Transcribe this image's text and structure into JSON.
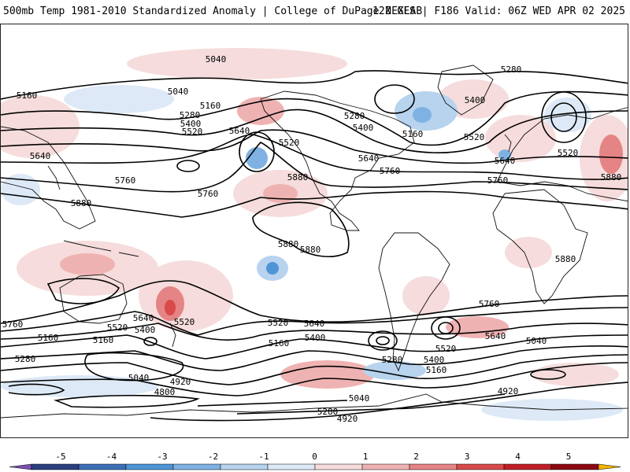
{
  "header": {
    "left_title": "500mb Temp 1981-2010 Standardized Anomaly | College of DuPage NEXLAB",
    "right_title": "12Z GFS | F186 Valid: 06Z WED APR 02 2025"
  },
  "contour_labels": [
    "5040",
    "5040",
    "5160",
    "5160",
    "5280",
    "5400",
    "5520",
    "5640",
    "5520",
    "5640",
    "5760",
    "5880",
    "5760",
    "5880",
    "5880",
    "5880",
    "5280",
    "5160",
    "5400",
    "5280",
    "5520",
    "5640",
    "5760",
    "5160",
    "5520",
    "5400",
    "5640",
    "5520",
    "5880",
    "5880",
    "5760",
    "5640",
    "5520",
    "5400",
    "5160",
    "5280",
    "5040",
    "4920",
    "4800",
    "5760",
    "5520",
    "5640",
    "5160",
    "5400",
    "5280",
    "5040",
    "4920",
    "5280",
    "5400",
    "5520",
    "5640",
    "5760",
    "5160",
    "5040",
    "4920"
  ],
  "colorbar": {
    "ticks": [
      "-5",
      "-4",
      "-3",
      "-2",
      "-1",
      "0",
      "1",
      "2",
      "3",
      "4",
      "5"
    ],
    "colors": [
      "#7b4fb0",
      "#2b3f7d",
      "#3b6fb8",
      "#4f95d6",
      "#7fb2e3",
      "#b7d3ee",
      "#dde9f6",
      "#f6dcdc",
      "#efb2b2",
      "#e58484",
      "#d94a4a",
      "#c01f28",
      "#8b0a12",
      "#f2b400"
    ]
  }
}
